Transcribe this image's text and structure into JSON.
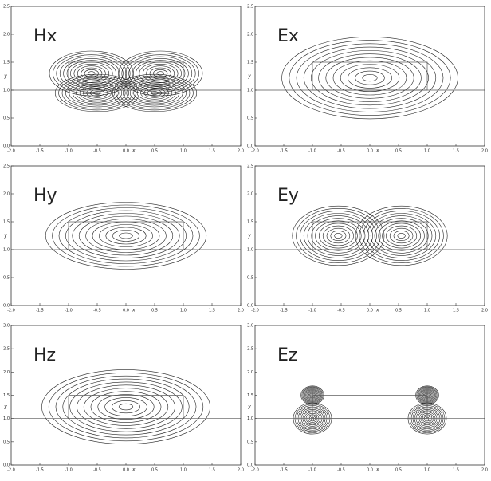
{
  "chart_data": [
    {
      "type": "contour",
      "title": "Hx",
      "x_label": "x",
      "y_label": "y",
      "xlim": [
        -2,
        2
      ],
      "ylim": [
        0,
        2.5
      ],
      "xticks": [
        {
          "value": -2,
          "label": "-2.0"
        },
        {
          "value": -1.5,
          "label": "-1.5"
        },
        {
          "value": -1,
          "label": "-1.0"
        },
        {
          "value": -0.5,
          "label": "-0.5"
        },
        {
          "value": 0,
          "label": "0.0"
        },
        {
          "value": 0.5,
          "label": "0.5"
        },
        {
          "value": 1,
          "label": "1.0"
        },
        {
          "value": 1.5,
          "label": "1.5"
        },
        {
          "value": 2,
          "label": "2.0"
        }
      ],
      "yticks": [
        {
          "value": 0,
          "label": "0.0"
        },
        {
          "value": 0.5,
          "label": "0.5"
        },
        {
          "value": 1,
          "label": "1.0"
        },
        {
          "value": 1.5,
          "label": "1.5"
        },
        {
          "value": 2,
          "label": "2.0"
        },
        {
          "value": 2.5,
          "label": "2.5"
        }
      ]
    },
    {
      "type": "contour",
      "title": "Ex",
      "x_label": "x",
      "y_label": "y",
      "xlim": [
        -2,
        2
      ],
      "ylim": [
        0,
        2.5
      ],
      "xticks": [
        {
          "value": -2,
          "label": "-2.0"
        },
        {
          "value": -1.5,
          "label": "-1.5"
        },
        {
          "value": -1,
          "label": "-1.0"
        },
        {
          "value": -0.5,
          "label": "-0.5"
        },
        {
          "value": 0,
          "label": "0.0"
        },
        {
          "value": 0.5,
          "label": "0.5"
        },
        {
          "value": 1,
          "label": "1.0"
        },
        {
          "value": 1.5,
          "label": "1.5"
        },
        {
          "value": 2,
          "label": "2.0"
        }
      ],
      "yticks": [
        {
          "value": 0,
          "label": "0.0"
        },
        {
          "value": 0.5,
          "label": "0.5"
        },
        {
          "value": 1,
          "label": "1.0"
        },
        {
          "value": 1.5,
          "label": "1.5"
        },
        {
          "value": 2,
          "label": "2.0"
        },
        {
          "value": 2.5,
          "label": "2.5"
        }
      ]
    },
    {
      "type": "contour",
      "title": "Hy",
      "x_label": "x",
      "y_label": "y",
      "xlim": [
        -2,
        2
      ],
      "ylim": [
        0,
        2.5
      ],
      "xticks": [
        {
          "value": -2,
          "label": "-2.0"
        },
        {
          "value": -1.5,
          "label": "-1.5"
        },
        {
          "value": -1,
          "label": "-1.0"
        },
        {
          "value": -0.5,
          "label": "-0.5"
        },
        {
          "value": 0,
          "label": "0.0"
        },
        {
          "value": 0.5,
          "label": "0.5"
        },
        {
          "value": 1,
          "label": "1.0"
        },
        {
          "value": 1.5,
          "label": "1.5"
        },
        {
          "value": 2,
          "label": "2.0"
        }
      ],
      "yticks": [
        {
          "value": 0,
          "label": "0.0"
        },
        {
          "value": 0.5,
          "label": "0.5"
        },
        {
          "value": 1,
          "label": "1.0"
        },
        {
          "value": 1.5,
          "label": "1.5"
        },
        {
          "value": 2,
          "label": "2.0"
        },
        {
          "value": 2.5,
          "label": "2.5"
        }
      ]
    },
    {
      "type": "contour",
      "title": "Ey",
      "x_label": "x",
      "y_label": "y",
      "xlim": [
        -2,
        2
      ],
      "ylim": [
        0,
        2.5
      ],
      "xticks": [
        {
          "value": -2,
          "label": "-2.0"
        },
        {
          "value": -1.5,
          "label": "-1.5"
        },
        {
          "value": -1,
          "label": "-1.0"
        },
        {
          "value": -0.5,
          "label": "-0.5"
        },
        {
          "value": 0,
          "label": "0.0"
        },
        {
          "value": 0.5,
          "label": "0.5"
        },
        {
          "value": 1,
          "label": "1.0"
        },
        {
          "value": 1.5,
          "label": "1.5"
        },
        {
          "value": 2,
          "label": "2.0"
        }
      ],
      "yticks": [
        {
          "value": 0,
          "label": "0.0"
        },
        {
          "value": 0.5,
          "label": "0.5"
        },
        {
          "value": 1,
          "label": "1.0"
        },
        {
          "value": 1.5,
          "label": "1.5"
        },
        {
          "value": 2,
          "label": "2.0"
        },
        {
          "value": 2.5,
          "label": "2.5"
        }
      ]
    },
    {
      "type": "contour",
      "title": "Hz",
      "x_label": "x",
      "y_label": "y",
      "xlim": [
        -2,
        2
      ],
      "ylim": [
        0,
        3
      ],
      "xticks": [
        {
          "value": -2,
          "label": "-2.0"
        },
        {
          "value": -1.5,
          "label": "-1.5"
        },
        {
          "value": -1,
          "label": "-1.0"
        },
        {
          "value": -0.5,
          "label": "-0.5"
        },
        {
          "value": 0,
          "label": "0.0"
        },
        {
          "value": 0.5,
          "label": "0.5"
        },
        {
          "value": 1,
          "label": "1.0"
        },
        {
          "value": 1.5,
          "label": "1.5"
        },
        {
          "value": 2,
          "label": "2.0"
        }
      ],
      "yticks": [
        {
          "value": 0,
          "label": "0.0"
        },
        {
          "value": 0.5,
          "label": "0.5"
        },
        {
          "value": 1,
          "label": "1.0"
        },
        {
          "value": 1.5,
          "label": "1.5"
        },
        {
          "value": 2,
          "label": "2.0"
        },
        {
          "value": 2.5,
          "label": "2.5"
        },
        {
          "value": 3,
          "label": "3.0"
        }
      ]
    },
    {
      "type": "contour",
      "title": "Ez",
      "x_label": "x",
      "y_label": "y",
      "xlim": [
        -2,
        2
      ],
      "ylim": [
        0,
        3
      ],
      "xticks": [
        {
          "value": -2,
          "label": "-2.0"
        },
        {
          "value": -1.5,
          "label": "-1.5"
        },
        {
          "value": -1,
          "label": "-1.0"
        },
        {
          "value": -0.5,
          "label": "-0.5"
        },
        {
          "value": 0,
          "label": "0.0"
        },
        {
          "value": 0.5,
          "label": "0.5"
        },
        {
          "value": 1,
          "label": "1.0"
        },
        {
          "value": 1.5,
          "label": "1.5"
        },
        {
          "value": 2,
          "label": "2.0"
        }
      ],
      "yticks": [
        {
          "value": 0,
          "label": "0.0"
        },
        {
          "value": 0.5,
          "label": "0.5"
        },
        {
          "value": 1,
          "label": "1.0"
        },
        {
          "value": 1.5,
          "label": "1.5"
        },
        {
          "value": 2,
          "label": "2.0"
        },
        {
          "value": 2.5,
          "label": "2.5"
        },
        {
          "value": 3,
          "label": "3.0"
        }
      ]
    }
  ]
}
